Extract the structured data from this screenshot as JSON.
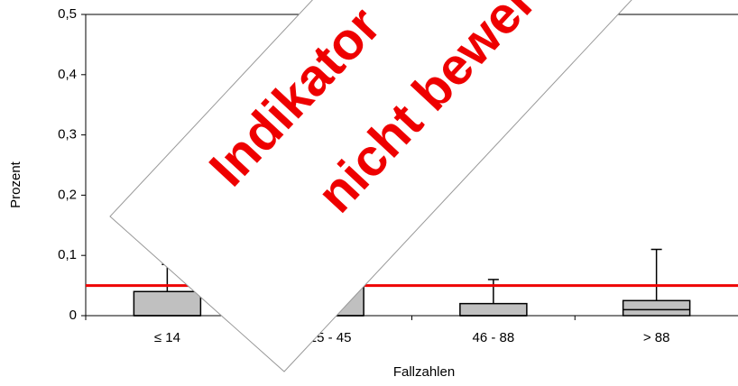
{
  "chart_data": {
    "type": "box",
    "x_label": "Fallzahlen",
    "y_label": "Prozent",
    "categories": [
      "≤ 14",
      "15 - 45",
      "46 - 88",
      "> 88"
    ],
    "boxes": [
      {
        "low": 0,
        "q1": 0,
        "median": 0,
        "q3": 0.04,
        "high": 0.085
      },
      {
        "low": 0,
        "q1": 0,
        "median": 0,
        "q3": 0.05,
        "high": 0.05
      },
      {
        "low": 0,
        "q1": 0,
        "median": 0,
        "q3": 0.02,
        "high": 0.06
      },
      {
        "low": 0,
        "q1": 0,
        "median": 0.01,
        "q3": 0.025,
        "high": 0.11
      }
    ],
    "box_color": "#c0c0c0",
    "reference_line": {
      "value": 0.05,
      "color": "#ee0000"
    },
    "ylim": [
      0,
      0.5
    ],
    "yticks": [
      0,
      {
        "value": 0.1,
        "label": "0,1"
      },
      {
        "value": 0.2,
        "label": "0,2"
      },
      {
        "value": 0.3,
        "label": "0,3"
      },
      {
        "value": 0.4,
        "label": "0,4"
      },
      {
        "value": 0.5,
        "label": "0,5"
      }
    ],
    "overlay": {
      "line1": "Indikator",
      "line2": "nicht bewertet"
    }
  }
}
